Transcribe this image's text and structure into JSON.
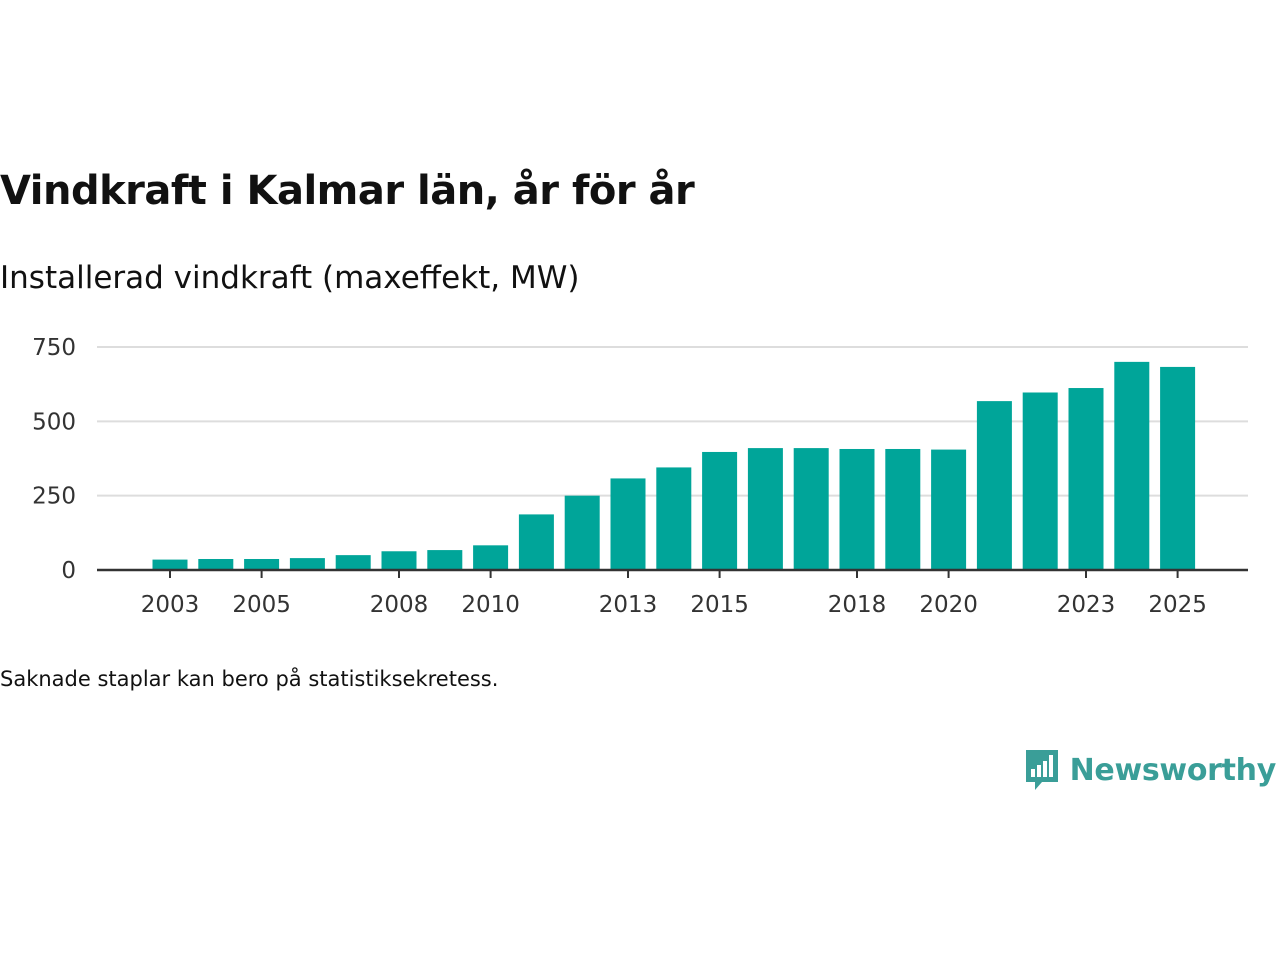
{
  "title": "Vindkraft i Kalmar län, år för år",
  "subtitle": "Installerad vindkraft (maxeffekt, MW)",
  "note": "Saknade staplar kan bero på statistiksekretess.",
  "brand": {
    "name": "Newsworthy",
    "icon": "bar-chart-speech-bubble-icon"
  },
  "colors": {
    "bar": "#00a599",
    "grid": "#dddddd",
    "axis": "#333333",
    "brand": "#3a9e98"
  },
  "chart_data": {
    "type": "bar",
    "title": "Vindkraft i Kalmar län, år för år",
    "subtitle": "Installerad vindkraft (maxeffekt, MW)",
    "xlabel": "",
    "ylabel": "",
    "categories": [
      "2003",
      "2004",
      "2005",
      "2006",
      "2007",
      "2008",
      "2009",
      "2010",
      "2011",
      "2012",
      "2013",
      "2014",
      "2015",
      "2016",
      "2017",
      "2018",
      "2019",
      "2020",
      "2021",
      "2022",
      "2023",
      "2024",
      "2025"
    ],
    "values": [
      35,
      37,
      37,
      40,
      50,
      63,
      67,
      83,
      187,
      250,
      308,
      345,
      397,
      410,
      410,
      407,
      407,
      405,
      568,
      597,
      612,
      700,
      683
    ],
    "xtick_labels": [
      "2003",
      "2005",
      "2008",
      "2010",
      "2013",
      "2015",
      "2018",
      "2020",
      "2023",
      "2025"
    ],
    "yticks": [
      0,
      250,
      500,
      750
    ],
    "ylim": [
      0,
      750
    ],
    "grid": true,
    "legend": "none"
  }
}
